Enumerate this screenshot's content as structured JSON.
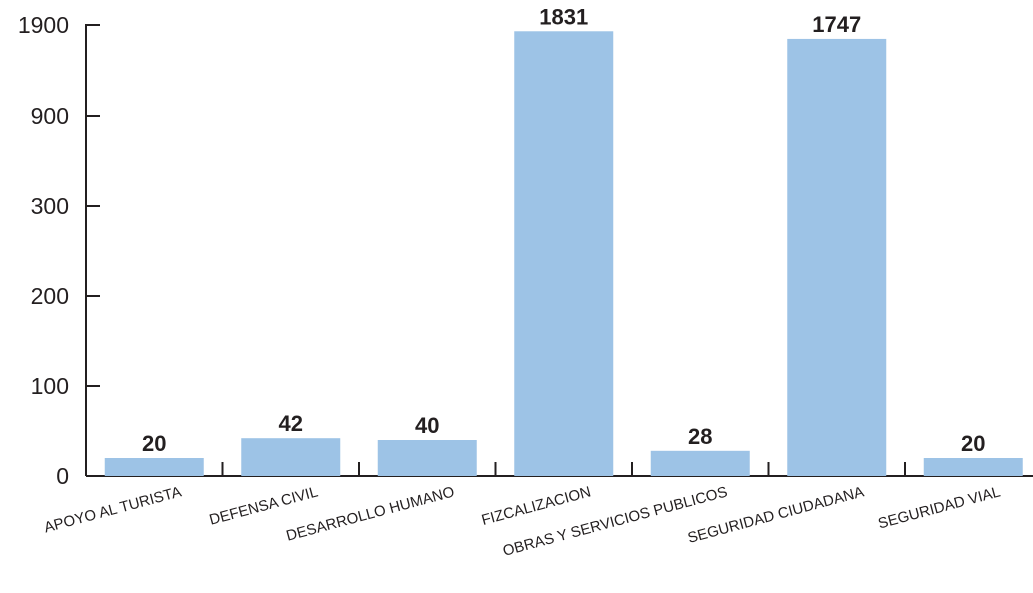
{
  "chart_data": {
    "type": "bar",
    "categories": [
      "APOYO AL TURISTA",
      "DEFENSA CIVIL",
      "DESARROLLO HUMANO",
      "FIZCALIZACION",
      "OBRAS Y SERVICIOS PUBLICOS",
      "SEGURIDAD CIUDADANA",
      "SEGURIDAD VIAL"
    ],
    "values": [
      20,
      42,
      40,
      1831,
      28,
      1747,
      20
    ],
    "data_labels": [
      "20",
      "42",
      "40",
      "1831",
      "28",
      "1747",
      "20"
    ],
    "y_ticks": [
      0,
      100,
      200,
      300,
      900,
      1900
    ],
    "y_tick_labels": [
      "0",
      "100",
      "200",
      "300",
      "900",
      "1900"
    ],
    "y_scale": "piecewise-linear between labeled ticks",
    "title": "",
    "xlabel": "",
    "ylabel": "",
    "grid": false,
    "legend": "none"
  },
  "colors": {
    "bar": "#9dc3e6",
    "axis": "#231f20",
    "text": "#231f20"
  }
}
